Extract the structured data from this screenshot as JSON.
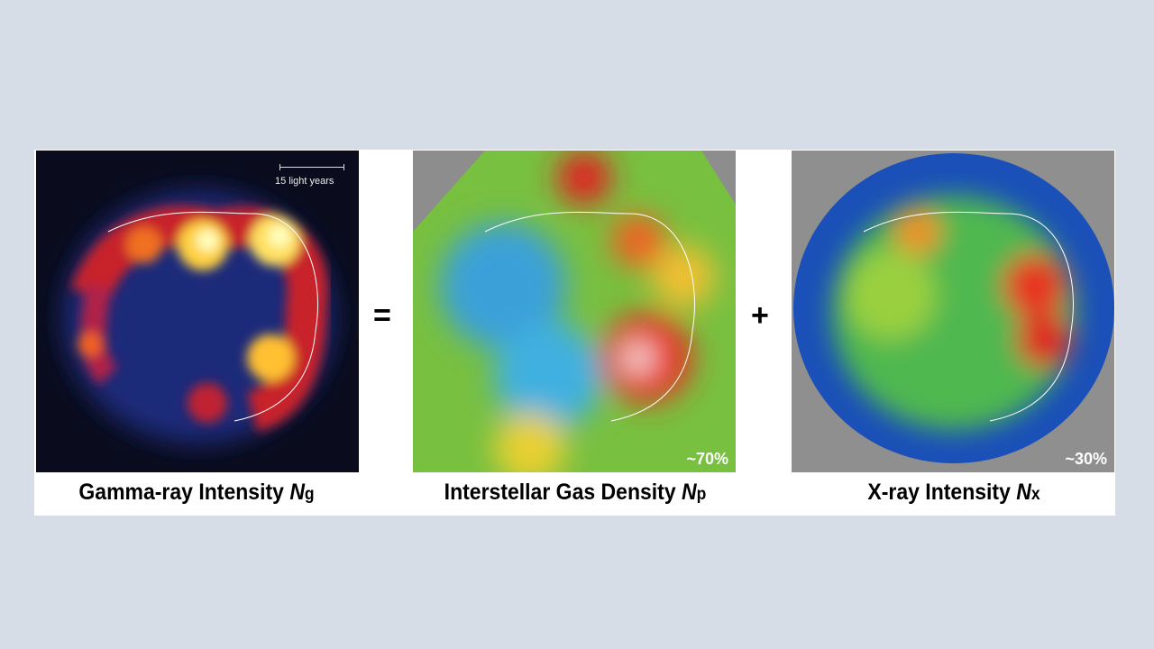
{
  "panels": [
    {
      "title": "Gamma-ray Intensity ",
      "symbol": "N",
      "subscript": "g",
      "scale_bar": "15 light years"
    },
    {
      "title": "Interstellar Gas Density ",
      "symbol": "N",
      "subscript": "p",
      "fraction": "~70%"
    },
    {
      "title": "X-ray Intensity ",
      "symbol": "N",
      "subscript": "x",
      "fraction": "~30%"
    }
  ],
  "operators": {
    "equals": "=",
    "plus": "+"
  }
}
